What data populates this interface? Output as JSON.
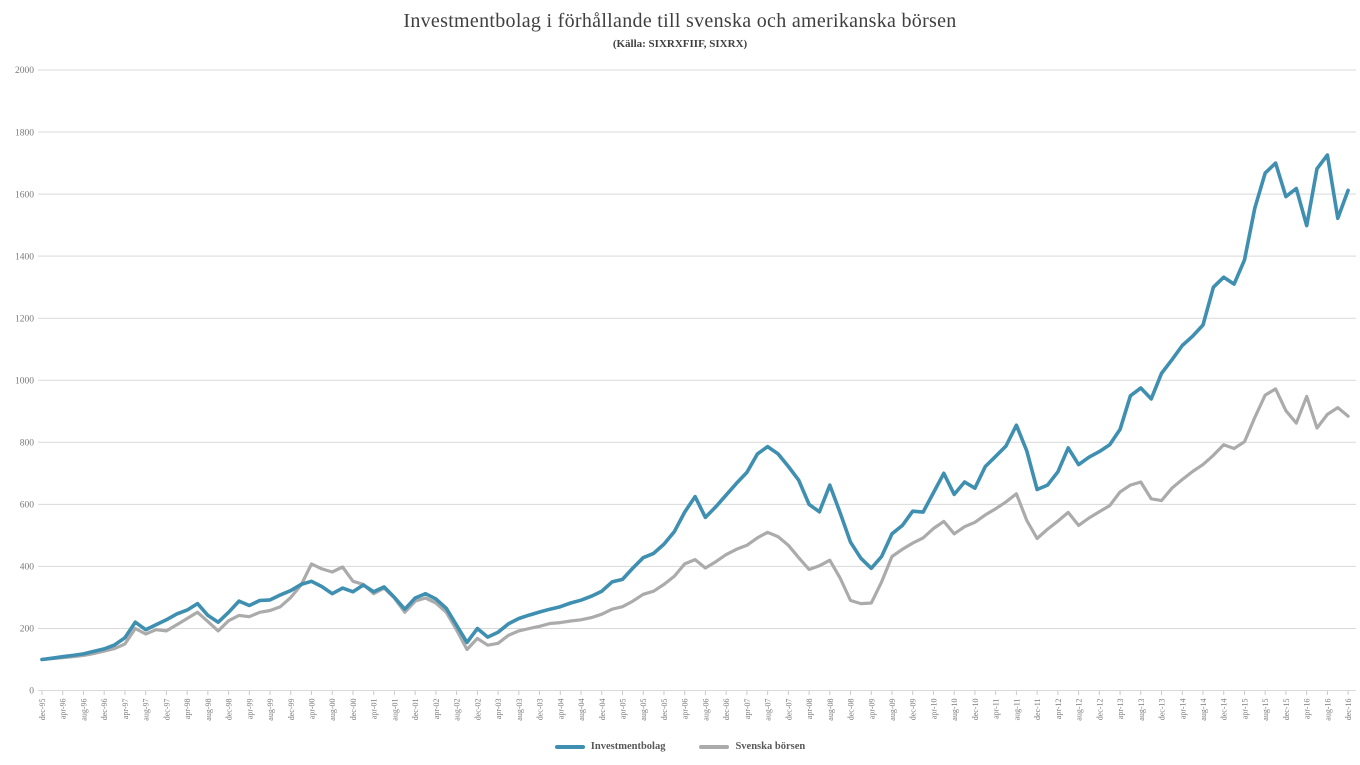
{
  "chart_data": {
    "type": "line",
    "title": "Investmentbolag i förhållande till svenska och amerikanska börsen",
    "subtitle": "(Källa: SIXRXFIIF, SIXRX)",
    "grid": true,
    "grid_color": "#d9d9d9",
    "legend_position": "bottom",
    "ylim": [
      0,
      2000
    ],
    "ytick_step": 200,
    "y_ticks": [
      0,
      200,
      400,
      600,
      800,
      1000,
      1200,
      1400,
      1600,
      1800,
      2000
    ],
    "x_label_interval_months": 4,
    "sample_interval_months": 2,
    "x_start": "dec-95",
    "x_end": "dec-16",
    "x_labels": [
      "dec-95",
      "apr-96",
      "aug-96",
      "dec-96",
      "apr-97",
      "aug-97",
      "dec-97",
      "apr-98",
      "aug-98",
      "dec-98",
      "apr-99",
      "aug-99",
      "dec-99",
      "apr-00",
      "aug-00",
      "dec-00",
      "apr-01",
      "aug-01",
      "dec-01",
      "apr-02",
      "aug-02",
      "dec-02",
      "apr-03",
      "aug-03",
      "dec-03",
      "apr-04",
      "aug-04",
      "dec-04",
      "apr-05",
      "aug-05",
      "dec-05",
      "apr-06",
      "aug-06",
      "dec-06",
      "apr-07",
      "aug-07",
      "dec-07",
      "apr-08",
      "aug-08",
      "dec-08",
      "apr-09",
      "aug-09",
      "dec-09",
      "apr-10",
      "aug-10",
      "dec-10",
      "apr-11",
      "aug-11",
      "dec-11",
      "apr-12",
      "aug-12",
      "dec-12",
      "apr-13",
      "aug-13",
      "dec-13",
      "apr-14",
      "aug-14",
      "dec-14",
      "apr-15",
      "aug-15",
      "dec-15",
      "apr-16",
      "aug-16",
      "dec-16"
    ],
    "series": [
      {
        "name": "Investmentbolag",
        "color": "#3f8fb1",
        "stroke_width": 3.6,
        "values": [
          100,
          104,
          109,
          113,
          118,
          126,
          134,
          147,
          170,
          220,
          196,
          212,
          228,
          247,
          259,
          280,
          242,
          220,
          252,
          288,
          274,
          290,
          292,
          308,
          322,
          342,
          352,
          335,
          312,
          330,
          318,
          340,
          318,
          334,
          300,
          262,
          298,
          312,
          295,
          265,
          210,
          155,
          200,
          172,
          188,
          215,
          232,
          243,
          253,
          262,
          270,
          282,
          291,
          304,
          320,
          350,
          358,
          395,
          428,
          442,
          472,
          512,
          575,
          625,
          558,
          592,
          630,
          668,
          703,
          762,
          786,
          763,
          722,
          678,
          600,
          576,
          662,
          572,
          478,
          426,
          394,
          432,
          505,
          532,
          578,
          575,
          638,
          700,
          632,
          672,
          652,
          722,
          755,
          788,
          855,
          772,
          648,
          662,
          705,
          782,
          728,
          752,
          770,
          792,
          842,
          950,
          975,
          940,
          1022,
          1066,
          1112,
          1142,
          1178,
          1300,
          1332,
          1310,
          1388,
          1555,
          1668,
          1700,
          1592,
          1618,
          1498,
          1682,
          1726,
          1522,
          1612
        ]
      },
      {
        "name": "Svenska börsen",
        "color": "#ababab",
        "stroke_width": 3.2,
        "values": [
          100,
          103,
          106,
          109,
          113,
          119,
          127,
          135,
          150,
          200,
          182,
          196,
          192,
          212,
          232,
          252,
          222,
          192,
          225,
          242,
          238,
          252,
          258,
          270,
          300,
          340,
          408,
          392,
          382,
          398,
          352,
          342,
          312,
          330,
          298,
          252,
          288,
          298,
          282,
          252,
          195,
          132,
          168,
          146,
          152,
          178,
          192,
          200,
          207,
          216,
          219,
          224,
          228,
          235,
          246,
          262,
          270,
          288,
          310,
          320,
          342,
          368,
          408,
          422,
          395,
          415,
          438,
          455,
          468,
          492,
          510,
          496,
          468,
          428,
          390,
          402,
          420,
          362,
          290,
          280,
          282,
          350,
          432,
          455,
          475,
          492,
          522,
          545,
          505,
          528,
          542,
          566,
          586,
          608,
          634,
          548,
          490,
          520,
          546,
          574,
          532,
          556,
          576,
          596,
          640,
          662,
          672,
          618,
          612,
          652,
          680,
          706,
          728,
          758,
          792,
          780,
          802,
          880,
          952,
          972,
          902,
          862,
          948,
          846,
          890,
          912,
          884
        ]
      }
    ]
  }
}
